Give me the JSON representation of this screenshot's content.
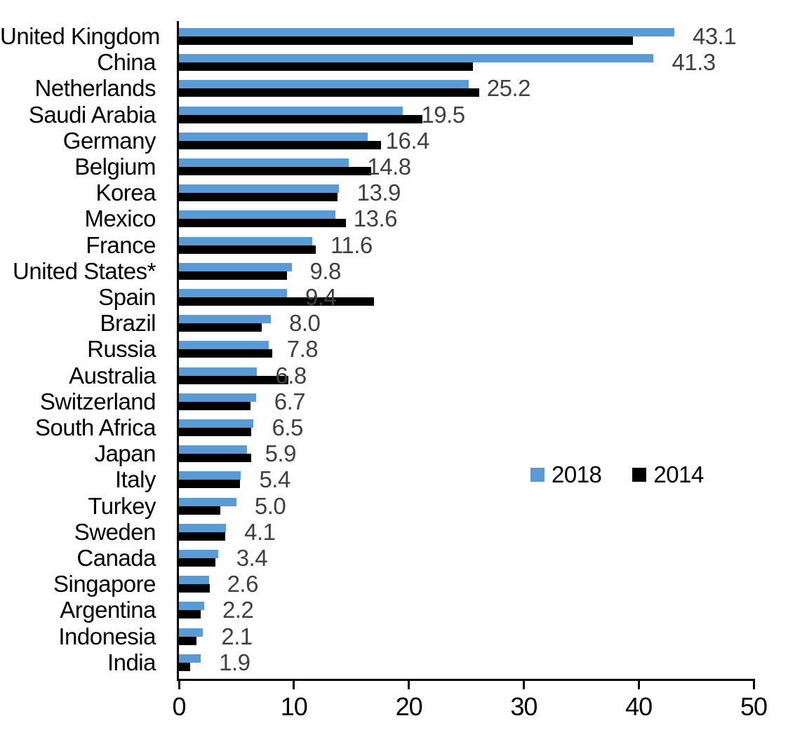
{
  "chart_data": {
    "type": "bar",
    "orientation": "horizontal",
    "title": "",
    "xlabel": "",
    "ylabel": "",
    "xlim": [
      0,
      50
    ],
    "x_ticks": [
      "0",
      "10",
      "20",
      "30",
      "40",
      "50"
    ],
    "grid": false,
    "legend_position": "middle-right",
    "categories": [
      "United Kingdom",
      "China",
      "Netherlands",
      "Saudi Arabia",
      "Germany",
      "Belgium",
      "Korea",
      "Mexico",
      "France",
      "United States*",
      "Spain",
      "Brazil",
      "Russia",
      "Australia",
      "Switzerland",
      "South Africa",
      "Japan",
      "Italy",
      "Turkey",
      "Sweden",
      "Canada",
      "Singapore",
      "Argentina",
      "Indonesia",
      "India"
    ],
    "series": [
      {
        "name": "2018",
        "color": "#5B9BD5",
        "values": [
          43.1,
          41.3,
          25.2,
          19.5,
          16.4,
          14.8,
          13.9,
          13.6,
          11.6,
          9.8,
          9.4,
          8.0,
          7.8,
          6.8,
          6.7,
          6.5,
          5.9,
          5.4,
          5.0,
          4.1,
          3.4,
          2.6,
          2.2,
          2.1,
          1.9
        ]
      },
      {
        "name": "2014",
        "color": "#000000",
        "values": [
          39.5,
          25.6,
          26.1,
          21.2,
          17.6,
          16.7,
          13.8,
          14.5,
          11.9,
          9.4,
          17.0,
          7.2,
          8.1,
          9.5,
          6.2,
          6.3,
          6.3,
          5.3,
          3.6,
          4.0,
          3.2,
          2.7,
          1.9,
          1.5,
          1.0
        ]
      }
    ],
    "data_labels": [
      "43.1",
      "41.3",
      "25.2",
      "19.5",
      "16.4",
      "14.8",
      "13.9",
      "13.6",
      "11.6",
      "9.8",
      "9.4",
      "8.0",
      "7.8",
      "6.8",
      "6.7",
      "6.5",
      "5.9",
      "5.4",
      "5.0",
      "4.1",
      "3.4",
      "2.6",
      "2.2",
      "2.1",
      "1.9"
    ],
    "data_label_series": "2018",
    "data_label_color": "#404040",
    "axis_color": "#000000",
    "legend": [
      {
        "label": "2018",
        "color": "#5B9BD5"
      },
      {
        "label": "2014",
        "color": "#000000"
      }
    ]
  }
}
